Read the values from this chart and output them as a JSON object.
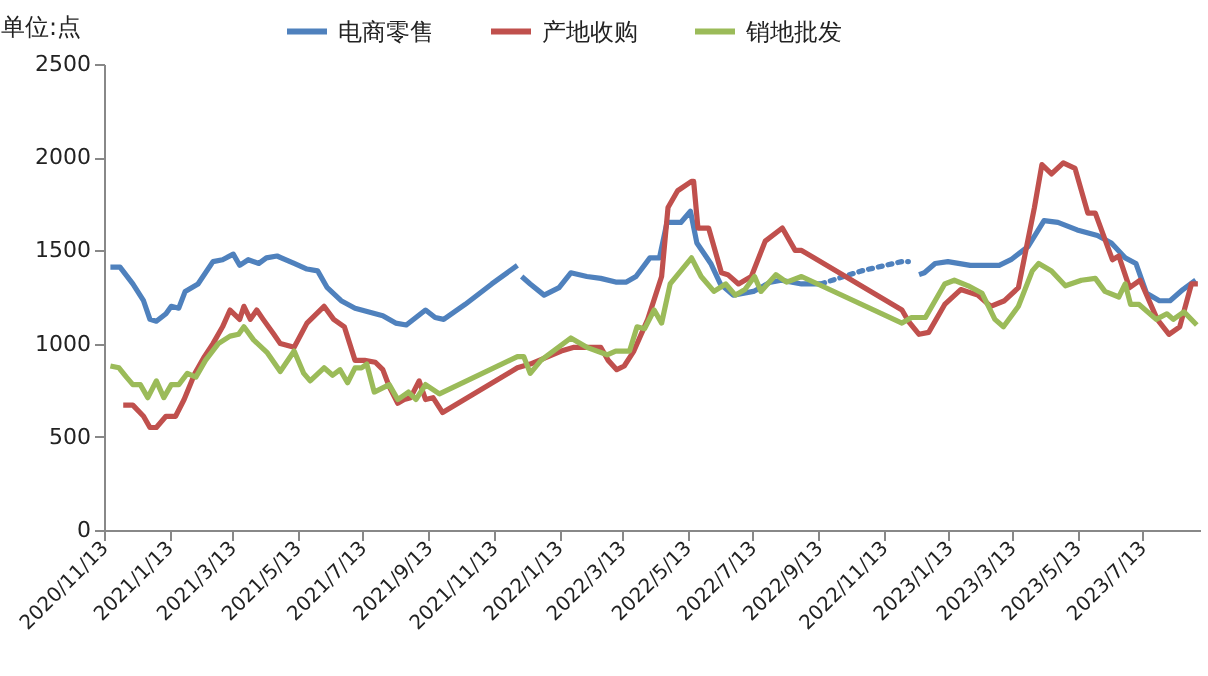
{
  "chart_data": {
    "type": "line",
    "ylabel": "单位:点",
    "legend": "top",
    "grid": false,
    "xlim": [
      "2020-11-13",
      "2023-09-05"
    ],
    "ylim": [
      0,
      2500
    ],
    "yticks": [
      0,
      500,
      1000,
      1500,
      2000,
      2500
    ],
    "xticks": [
      {
        "value": "2020-11-13",
        "label": "2020/11/13"
      },
      {
        "value": "2021-01-13",
        "label": "2021/1/13"
      },
      {
        "value": "2021-03-13",
        "label": "2021/3/13"
      },
      {
        "value": "2021-05-13",
        "label": "2021/5/13"
      },
      {
        "value": "2021-07-13",
        "label": "2021/7/13"
      },
      {
        "value": "2021-09-13",
        "label": "2021/9/13"
      },
      {
        "value": "2021-11-13",
        "label": "2021/11/13"
      },
      {
        "value": "2022-01-13",
        "label": "2022/1/13"
      },
      {
        "value": "2022-03-13",
        "label": "2022/3/13"
      },
      {
        "value": "2022-05-13",
        "label": "2022/5/13"
      },
      {
        "value": "2022-07-13",
        "label": "2022/7/13"
      },
      {
        "value": "2022-09-13",
        "label": "2022/9/13"
      },
      {
        "value": "2022-11-13",
        "label": "2022/11/13"
      },
      {
        "value": "2023-01-13",
        "label": "2023/1/13"
      },
      {
        "value": "2023-03-13",
        "label": "2023/3/13"
      },
      {
        "value": "2023-05-13",
        "label": "2023/5/13"
      },
      {
        "value": "2023-07-13",
        "label": "2023/7/13"
      }
    ],
    "series": [
      {
        "name": "电商零售",
        "color": "#4f81bd",
        "line_style": "solid",
        "x": [
          "2020-11-19",
          "2020-11-28",
          "2020-12-10",
          "2020-12-20",
          "2020-12-26",
          "2021-01-01",
          "2021-01-10",
          "2021-01-15",
          "2021-01-22",
          "2021-01-28",
          "2021-02-09",
          "2021-02-23",
          "2021-03-04",
          "2021-03-14",
          "2021-03-20",
          "2021-03-28",
          "2021-04-07",
          "2021-04-14",
          "2021-04-24",
          "2021-05-10",
          "2021-05-22",
          "2021-06-01",
          "2021-06-10",
          "2021-06-23",
          "2021-07-06",
          "2021-07-19",
          "2021-08-01",
          "2021-08-13",
          "2021-08-23",
          "2021-09-01",
          "2021-09-10",
          "2021-09-19",
          "2021-09-27",
          "2021-10-17",
          "2021-11-11",
          "2021-12-05",
          "2021-12-07",
          "2021-12-09",
          "2021-12-17",
          "2021-12-30",
          "2022-01-13",
          "2022-01-24",
          "2022-02-08",
          "2022-02-21",
          "2022-03-07",
          "2022-03-17",
          "2022-03-26",
          "2022-04-08",
          "2022-04-17",
          "2022-04-24",
          "2022-05-07",
          "2022-05-16",
          "2022-05-22",
          "2022-06-04",
          "2022-06-13",
          "2022-06-25",
          "2022-07-14",
          "2022-07-30",
          "2022-08-09",
          "2022-08-28",
          "2022-09-15",
          "2022-12-06",
          "2022-12-16",
          "2022-12-21",
          "2022-12-31",
          "2023-01-12",
          "2023-02-02",
          "2023-03-01",
          "2023-03-12",
          "2023-03-28",
          "2023-04-12",
          "2023-04-25",
          "2023-05-13",
          "2023-06-01",
          "2023-06-14",
          "2023-06-27",
          "2023-07-07",
          "2023-07-17",
          "2023-07-29",
          "2023-08-08",
          "2023-08-20",
          "2023-09-01"
        ],
        "values": [
          1410,
          1410,
          1320,
          1230,
          1130,
          1120,
          1160,
          1200,
          1190,
          1280,
          1320,
          1440,
          1450,
          1480,
          1420,
          1450,
          1430,
          1460,
          1470,
          1430,
          1400,
          1390,
          1300,
          1230,
          1190,
          1170,
          1150,
          1110,
          1100,
          1140,
          1180,
          1140,
          1130,
          1210,
          1320,
          1420,
          null,
          1360,
          1320,
          1260,
          1300,
          1380,
          1360,
          1350,
          1330,
          1330,
          1360,
          1460,
          1460,
          1650,
          1650,
          1710,
          1540,
          1430,
          1320,
          1260,
          1280,
          1330,
          1340,
          1320,
          1320,
          null,
          1370,
          1380,
          1430,
          1440,
          1420,
          1420,
          1450,
          1520,
          1660,
          1650,
          1610,
          1580,
          1540,
          1460,
          1430,
          1270,
          1230,
          1230,
          1290,
          1340
        ]
      },
      {
        "color": "#4f81bd",
        "line_style": "dotted",
        "x": [
          "2022-09-15",
          "2022-10-23",
          "2022-11-30",
          "2022-12-06"
        ],
        "values": [
          1320,
          1390,
          1440,
          1440
        ]
      },
      {
        "name": "产地收购",
        "color": "#c0504d",
        "line_style": "solid",
        "x": [
          "2020-12-01",
          "2020-12-10",
          "2020-12-20",
          "2020-12-26",
          "2021-01-01",
          "2021-01-10",
          "2021-01-19",
          "2021-01-27",
          "2021-02-06",
          "2021-02-15",
          "2021-02-23",
          "2021-03-04",
          "2021-03-11",
          "2021-03-20",
          "2021-03-24",
          "2021-03-30",
          "2021-04-05",
          "2021-04-11",
          "2021-04-21",
          "2021-04-27",
          "2021-05-10",
          "2021-05-22",
          "2021-06-07",
          "2021-06-16",
          "2021-06-26",
          "2021-07-06",
          "2021-07-15",
          "2021-07-25",
          "2021-08-01",
          "2021-08-07",
          "2021-08-15",
          "2021-08-21",
          "2021-08-27",
          "2021-09-04",
          "2021-09-10",
          "2021-09-17",
          "2021-09-26",
          "2021-12-05",
          "2021-12-17",
          "2022-01-15",
          "2022-01-27",
          "2022-02-21",
          "2022-02-28",
          "2022-03-08",
          "2022-03-15",
          "2022-03-24",
          "2022-04-06",
          "2022-04-19",
          "2022-04-25",
          "2022-05-04",
          "2022-05-17",
          "2022-05-19",
          "2022-05-23",
          "2022-06-02",
          "2022-06-14",
          "2022-06-20",
          "2022-06-30",
          "2022-07-12",
          "2022-07-25",
          "2022-08-10",
          "2022-08-22",
          "2022-08-28",
          "2022-11-30",
          "2022-12-06",
          "2022-12-16",
          "2022-12-25",
          "2023-01-09",
          "2023-01-24",
          "2023-02-09",
          "2023-02-21",
          "2023-03-06",
          "2023-03-19",
          "2023-04-03",
          "2023-04-10",
          "2023-04-19",
          "2023-04-30",
          "2023-05-11",
          "2023-05-23",
          "2023-05-30",
          "2023-06-15",
          "2023-06-21",
          "2023-07-01",
          "2023-07-11",
          "2023-07-27",
          "2023-08-07",
          "2023-08-17",
          "2023-08-28",
          "2023-09-03"
        ],
        "values": [
          670,
          670,
          610,
          550,
          550,
          610,
          610,
          700,
          840,
          930,
          1000,
          1090,
          1180,
          1130,
          1200,
          1130,
          1180,
          1130,
          1050,
          1000,
          980,
          1110,
          1200,
          1130,
          1090,
          910,
          910,
          900,
          860,
          770,
          680,
          700,
          710,
          800,
          700,
          710,
          630,
          870,
          890,
          960,
          980,
          980,
          910,
          860,
          880,
          960,
          1130,
          1360,
          1730,
          1820,
          1870,
          1870,
          1620,
          1620,
          1380,
          1370,
          1320,
          1360,
          1550,
          1620,
          1500,
          1500,
          1180,
          1120,
          1050,
          1060,
          1210,
          1290,
          1260,
          1200,
          1230,
          1300,
          1730,
          1960,
          1910,
          1970,
          1940,
          1700,
          1700,
          1450,
          1470,
          1300,
          1340,
          1130,
          1050,
          1090,
          1320,
          1320
        ]
      },
      {
        "name": "销地批发",
        "color": "#9bbb59",
        "line_style": "solid",
        "x": [
          "2020-11-19",
          "2020-11-27",
          "2020-12-04",
          "2020-12-10",
          "2020-12-17",
          "2020-12-24",
          "2021-01-01",
          "2021-01-08",
          "2021-01-15",
          "2021-01-22",
          "2021-01-30",
          "2021-02-07",
          "2021-02-16",
          "2021-02-28",
          "2021-03-11",
          "2021-03-19",
          "2021-03-24",
          "2021-04-02",
          "2021-04-15",
          "2021-04-27",
          "2021-05-10",
          "2021-05-19",
          "2021-05-25",
          "2021-06-07",
          "2021-06-15",
          "2021-06-22",
          "2021-06-29",
          "2021-07-06",
          "2021-07-12",
          "2021-07-17",
          "2021-07-24",
          "2021-08-07",
          "2021-08-15",
          "2021-08-25",
          "2021-09-01",
          "2021-09-10",
          "2021-09-23",
          "2021-12-05",
          "2021-12-11",
          "2021-12-17",
          "2021-12-27",
          "2022-01-24",
          "2022-02-08",
          "2022-02-27",
          "2022-03-07",
          "2022-03-20",
          "2022-03-27",
          "2022-04-03",
          "2022-04-12",
          "2022-04-19",
          "2022-04-27",
          "2022-05-17",
          "2022-05-26",
          "2022-06-07",
          "2022-06-18",
          "2022-06-27",
          "2022-07-06",
          "2022-07-15",
          "2022-07-21",
          "2022-08-04",
          "2022-08-14",
          "2022-08-28",
          "2022-11-30",
          "2022-12-09",
          "2022-12-22",
          "2023-01-09",
          "2023-01-18",
          "2023-01-31",
          "2023-02-13",
          "2023-02-25",
          "2023-03-05",
          "2023-03-19",
          "2023-04-01",
          "2023-04-07",
          "2023-04-19",
          "2023-05-02",
          "2023-05-17",
          "2023-05-30",
          "2023-06-08",
          "2023-06-21",
          "2023-06-27",
          "2023-07-02",
          "2023-07-10",
          "2023-07-26",
          "2023-08-05",
          "2023-08-11",
          "2023-08-21",
          "2023-09-02"
        ],
        "values": [
          880,
          870,
          820,
          780,
          780,
          710,
          800,
          710,
          780,
          780,
          840,
          820,
          910,
          1000,
          1040,
          1050,
          1090,
          1020,
          950,
          850,
          960,
          840,
          800,
          870,
          830,
          860,
          790,
          870,
          870,
          890,
          740,
          780,
          700,
          740,
          700,
          780,
          730,
          930,
          930,
          840,
          910,
          1030,
          980,
          940,
          960,
          960,
          1090,
          1080,
          1180,
          1110,
          1320,
          1460,
          1360,
          1280,
          1320,
          1260,
          1290,
          1360,
          1280,
          1370,
          1330,
          1360,
          1110,
          1140,
          1140,
          1320,
          1340,
          1310,
          1270,
          1130,
          1090,
          1200,
          1390,
          1430,
          1390,
          1310,
          1340,
          1350,
          1280,
          1250,
          1320,
          1210,
          1210,
          1130,
          1160,
          1130,
          1170,
          1100
        ]
      }
    ]
  }
}
